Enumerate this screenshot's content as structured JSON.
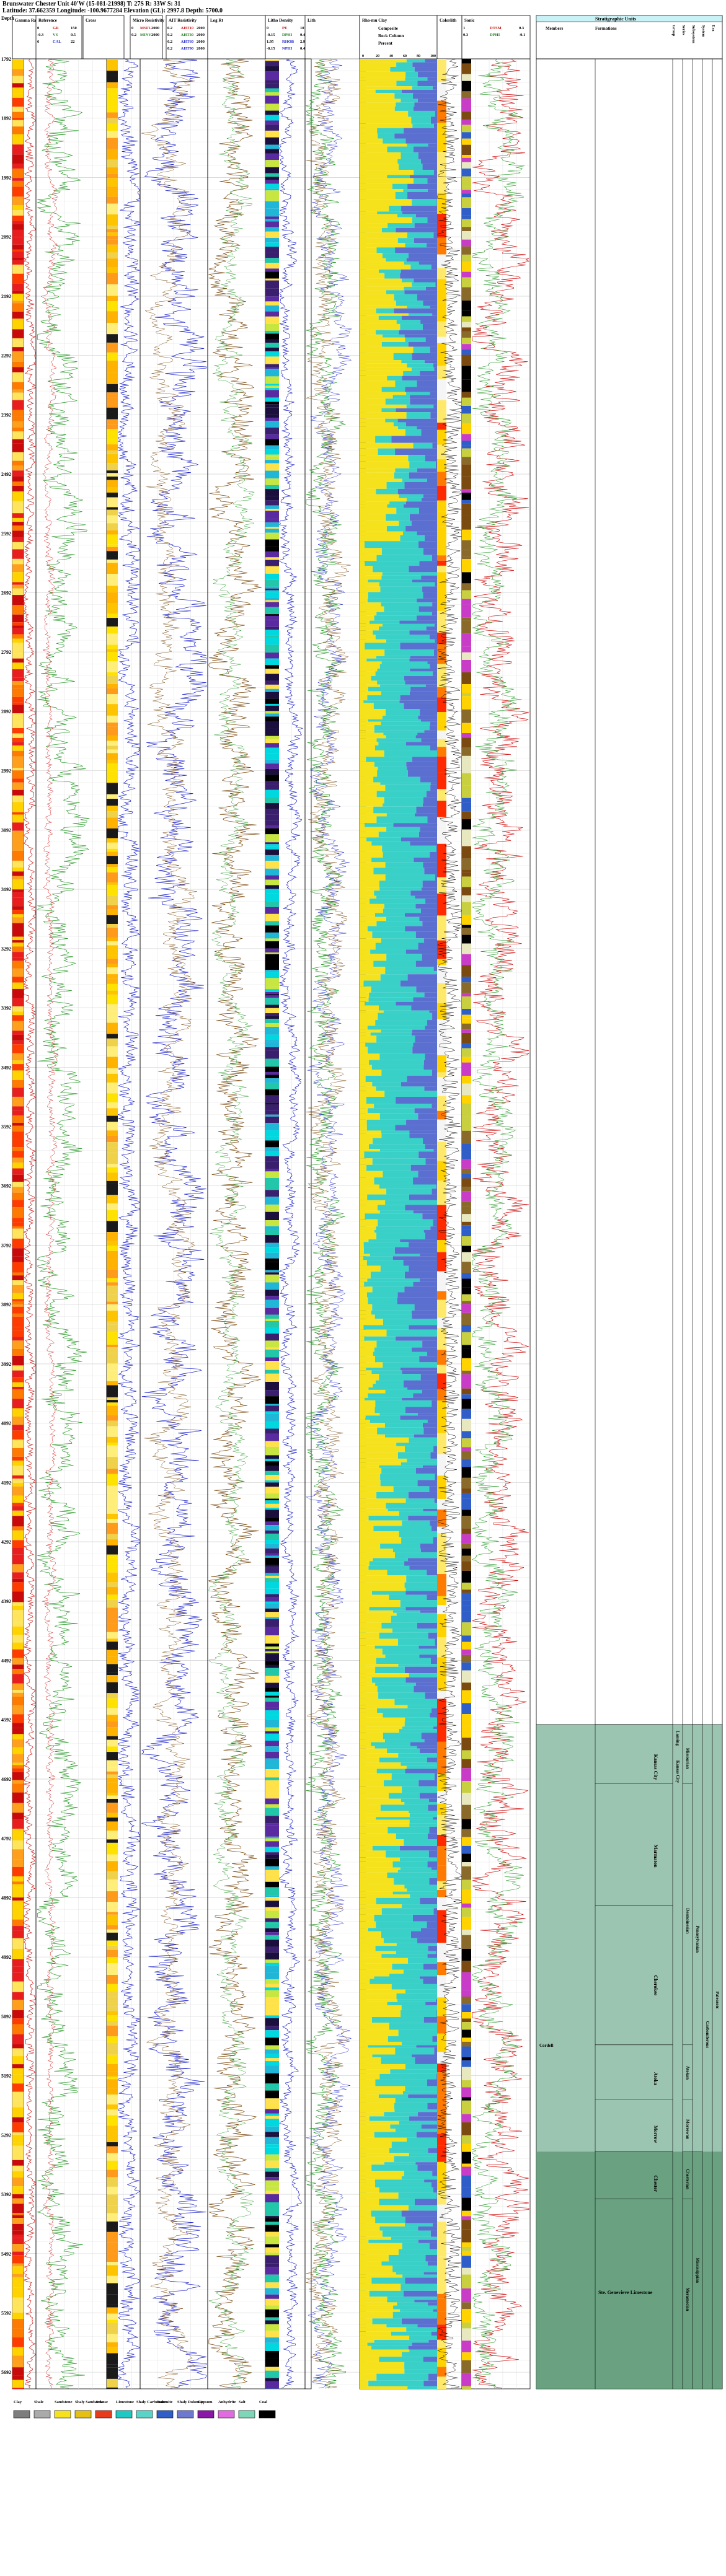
{
  "header": {
    "line1": "Brunswater Chester Unit 40'W (15-081-21998) T: 27S R: 33W S: 31",
    "line2": "Latitude: 37.662359 Longitude: -100.9677284 Elevation (GL): 2997.8 Depth: 5700.0"
  },
  "depth_axis": {
    "label": "Depth",
    "ticks": [
      "1792",
      "1892",
      "1992",
      "2092",
      "2192",
      "2292",
      "2392",
      "2492",
      "2592",
      "2692",
      "2792",
      "2892",
      "2992",
      "3092",
      "3192",
      "3292",
      "3392",
      "3492",
      "3592",
      "3692",
      "3792",
      "3892",
      "3992",
      "4092",
      "4192",
      "4292",
      "4392",
      "4492",
      "4592",
      "4692",
      "4792",
      "4892",
      "4992",
      "5092",
      "5192",
      "5292",
      "5392",
      "5492",
      "5592",
      "5692"
    ]
  },
  "tracks": {
    "gamma": {
      "title": "Gamma Ray"
    },
    "gr": {
      "title": "Reference",
      "curves": [
        [
          "0",
          "GR",
          "150"
        ],
        [
          "-0.3",
          "VS",
          "0.5"
        ],
        [
          "6",
          "CAL",
          "22"
        ]
      ]
    },
    "cross": {
      "title": "Cross"
    },
    "neutron": {
      "title": "Micro Resistivity",
      "curves": [
        [
          "0",
          "MSFL",
          "2000"
        ],
        [
          "0.2",
          "MINV",
          "2000"
        ]
      ]
    },
    "resist": {
      "title": "AIT Resistivity",
      "curves": [
        [
          "0.2",
          "AHT10",
          "2000"
        ],
        [
          "0.2",
          "AHT30",
          "2000"
        ],
        [
          "0.2",
          "AHT60",
          "2000"
        ],
        [
          "0.2",
          "AHT90",
          "2000"
        ]
      ]
    },
    "logrt": {
      "title": "Log Rt"
    },
    "lith": {
      "title": "Litho Density",
      "curves": [
        [
          "0",
          "PE",
          "10"
        ],
        [
          "-0.15",
          "DPHI",
          "0.45"
        ],
        [
          "1.95",
          "RHOB",
          "2.95"
        ],
        [
          "-0.15",
          "NPHI",
          "0.45"
        ]
      ]
    },
    "lithbar": {
      "title": "Lith"
    },
    "mineral": {
      "title": "Rho-mu Clay",
      "sub": [
        "Composite",
        "Rock Column",
        "Percent"
      ],
      "scale": [
        "0",
        "20",
        "40",
        "60",
        "80",
        "100"
      ]
    },
    "colbar": {
      "title": "Colorlith"
    },
    "sonic": {
      "title": "Sonic",
      "curves": [
        [
          "1",
          "DTSM",
          "0.3"
        ],
        [
          "0.3",
          "DPHI",
          "-0.1"
        ]
      ]
    },
    "strat": {
      "title": "Stratigraphic Units",
      "members": "Members",
      "formations": "Formations",
      "rank": [
        "Group",
        "Series",
        "Subsystem",
        "System",
        "Era"
      ]
    }
  },
  "strat_units": {
    "formations": [
      {
        "name": "Kansas City",
        "top": 4600,
        "bot": 4700
      },
      {
        "name": "Marmaton",
        "top": 4700,
        "bot": 4905
      },
      {
        "name": "Cherokee",
        "top": 4905,
        "bot": 5140
      },
      {
        "name": "Atoka",
        "top": 5140,
        "bot": 5232
      },
      {
        "name": "Morrow",
        "top": 5232,
        "bot": 5320
      },
      {
        "name": "Chester",
        "top": 5320,
        "bot": 5400
      },
      {
        "name": "Ste. Genevieve Limestone",
        "top": 5400,
        "bot": 5720
      }
    ],
    "member": "Cordell",
    "groups": [
      "Lansing",
      "Kansas City"
    ],
    "series": [
      "Missourian",
      "Desmoinesian",
      "Atokan",
      "Morrowan",
      "Chesterian",
      "Meramecian"
    ],
    "subsystem": [
      "Pennsylvanian",
      "Mississippian"
    ],
    "system": "Carboniferous",
    "era": "Paleozoic"
  },
  "legend": [
    {
      "label": "Clay",
      "color": "#7d7d7d"
    },
    {
      "label": "Shale",
      "color": "#aaaaaa"
    },
    {
      "label": "Sandstone",
      "color": "#f5e21c"
    },
    {
      "label": "Shaly Sandstone",
      "color": "#e3c013"
    },
    {
      "label": "Arkose",
      "color": "#e83b1e"
    },
    {
      "label": "Limestone",
      "color": "#1ec9c3"
    },
    {
      "label": "Shaly Carbonate",
      "color": "#5bd4c8"
    },
    {
      "label": "Dolomite",
      "color": "#2f5ec9"
    },
    {
      "label": "Shaly Dolomite",
      "color": "#6d79cf"
    },
    {
      "label": "Gypsum",
      "color": "#8a17a8"
    },
    {
      "label": "Anhydrite",
      "color": "#e16be0"
    },
    {
      "label": "Salt",
      "color": "#7dd6b8"
    },
    {
      "label": "Coal",
      "color": "#000000"
    }
  ],
  "colors": {
    "strat_fill": "#9cc5b1",
    "strat_fill_dark": "#5a9572",
    "strat_header": "#c8f2f5",
    "gr_curve": "#2d9b2d",
    "resist_curve": "#1e24c8",
    "dens_curve": "#d01414",
    "lith_curve": "#7a4a10"
  },
  "chart_data": {
    "type": "well-log",
    "depth_range": [
      1792,
      5720
    ],
    "depth_unit": "ft",
    "tracks": [
      "Gamma Ray",
      "Reference",
      "Cross",
      "Micro Resistivity",
      "AIT Resistivity",
      "Log Rt",
      "Litho Density",
      "Lith",
      "Rho-mu Clay",
      "Colorlith",
      "Sonic",
      "Stratigraphic Units"
    ],
    "formation_tops": [
      {
        "name": "Kansas City",
        "depth": 4600
      },
      {
        "name": "Marmaton",
        "depth": 4700
      },
      {
        "name": "Cherokee",
        "depth": 4905
      },
      {
        "name": "Atoka",
        "depth": 5140
      },
      {
        "name": "Morrow",
        "depth": 5232
      },
      {
        "name": "Chester",
        "depth": 5320
      },
      {
        "name": "Ste. Genevieve Limestone",
        "depth": 5400
      }
    ]
  }
}
